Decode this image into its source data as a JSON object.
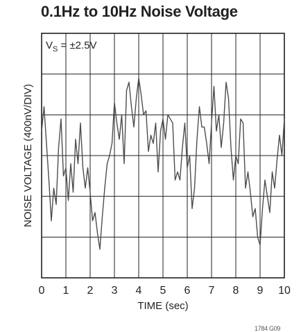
{
  "title": "0.1Hz to 10Hz Noise Voltage",
  "figure_id": "1784 G09",
  "chart_data": {
    "type": "line",
    "title": "0.1Hz to 10Hz Noise Voltage",
    "xlabel": "TIME (sec)",
    "ylabel": "NOISE VOLTAGE (400nV/DIV)",
    "xlim": [
      0,
      10
    ],
    "ylim": [
      -3,
      3
    ],
    "x_ticks": [
      0,
      1,
      2,
      3,
      4,
      5,
      6,
      7,
      8,
      9,
      10
    ],
    "y_divisions": 6,
    "grid": true,
    "line_color": "#4d4d4d",
    "annotation": {
      "prefix": "V",
      "subscript": "S",
      "suffix": " = ±2.5V"
    },
    "series": [
      {
        "x": [
          0.0,
          0.1,
          0.2,
          0.3,
          0.4,
          0.5,
          0.6,
          0.7,
          0.8,
          0.9,
          1.0,
          1.1,
          1.2,
          1.3,
          1.4,
          1.5,
          1.6,
          1.7,
          1.8,
          1.9,
          2.0,
          2.1,
          2.2,
          2.3,
          2.4,
          2.5,
          2.6,
          2.7,
          2.8,
          2.9,
          3.0,
          3.1,
          3.2,
          3.3,
          3.4,
          3.5,
          3.6,
          3.7,
          3.8,
          3.9,
          4.0,
          4.1,
          4.2,
          4.3,
          4.4,
          4.5,
          4.6,
          4.7,
          4.8,
          4.9,
          5.0,
          5.1,
          5.2,
          5.3,
          5.4,
          5.5,
          5.6,
          5.7,
          5.8,
          5.9,
          6.0,
          6.1,
          6.2,
          6.3,
          6.4,
          6.5,
          6.6,
          6.7,
          6.8,
          6.9,
          7.0,
          7.1,
          7.2,
          7.3,
          7.4,
          7.5,
          7.6,
          7.7,
          7.8,
          7.9,
          8.0,
          8.1,
          8.2,
          8.3,
          8.4,
          8.5,
          8.6,
          8.7,
          8.8,
          8.9,
          9.0,
          9.1,
          9.2,
          9.3,
          9.4,
          9.5,
          9.6,
          9.7,
          9.8,
          9.9,
          10.0
        ],
        "y": [
          0.6,
          1.2,
          0.3,
          -0.6,
          -1.6,
          -0.8,
          -1.2,
          0.2,
          0.9,
          -0.5,
          -0.3,
          -1.1,
          -0.2,
          -0.9,
          0.4,
          -0.2,
          0.8,
          -0.3,
          -0.8,
          -0.3,
          -0.9,
          -1.6,
          -1.4,
          -1.9,
          -2.3,
          -1.5,
          -0.8,
          -0.2,
          0.0,
          0.3,
          1.3,
          0.8,
          0.4,
          1.0,
          -0.2,
          1.6,
          1.8,
          1.2,
          0.7,
          1.4,
          1.9,
          1.5,
          1.0,
          1.1,
          0.1,
          0.5,
          0.3,
          0.8,
          -0.4,
          0.6,
          0.9,
          0.4,
          1.0,
          0.9,
          0.8,
          -0.6,
          -0.4,
          -0.6,
          0.2,
          0.8,
          -0.3,
          0.0,
          -1.3,
          -0.8,
          0.4,
          1.2,
          0.7,
          0.7,
          0.3,
          -0.2,
          0.8,
          1.7,
          0.6,
          1.0,
          0.2,
          0.8,
          1.8,
          1.4,
          0.2,
          -0.6,
          0.0,
          -0.2,
          0.9,
          0.8,
          -0.8,
          -0.4,
          -0.9,
          -1.5,
          -1.3,
          -2.0,
          -2.2,
          -1.3,
          -0.6,
          -1.0,
          -1.4,
          -0.4,
          -0.8,
          -0.1,
          0.5,
          0.0,
          0.9
        ]
      }
    ]
  }
}
